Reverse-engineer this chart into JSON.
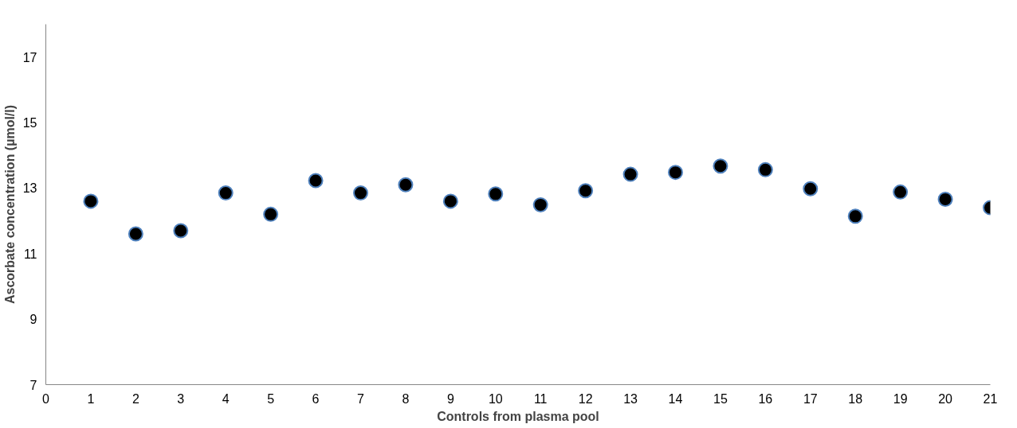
{
  "chart_data": {
    "type": "scatter",
    "xlabel": "Controls from plasma pool",
    "ylabel": "Ascorbate concentration (µmol/l)",
    "x": [
      1,
      2,
      3,
      4,
      5,
      6,
      7,
      8,
      9,
      10,
      11,
      12,
      13,
      14,
      15,
      16,
      17,
      18,
      19,
      20,
      21
    ],
    "series": [
      {
        "color": "#000000",
        "values": [
          12.6,
          11.6,
          11.7,
          12.85,
          12.2,
          13.23,
          12.85,
          13.1,
          12.6,
          12.82,
          12.49,
          12.92,
          13.42,
          13.48,
          13.67,
          13.56,
          12.98,
          12.14,
          12.88,
          12.66,
          12.4
        ]
      }
    ],
    "xlim": [
      0,
      21
    ],
    "xticks": [
      0,
      1,
      2,
      3,
      4,
      5,
      6,
      7,
      8,
      9,
      10,
      11,
      12,
      13,
      14,
      15,
      16,
      17,
      18,
      19,
      20,
      21
    ],
    "ylim": [
      7,
      18
    ],
    "yticks": [
      7,
      9,
      11,
      13,
      15,
      17
    ],
    "marker": "circle",
    "grid": false
  }
}
